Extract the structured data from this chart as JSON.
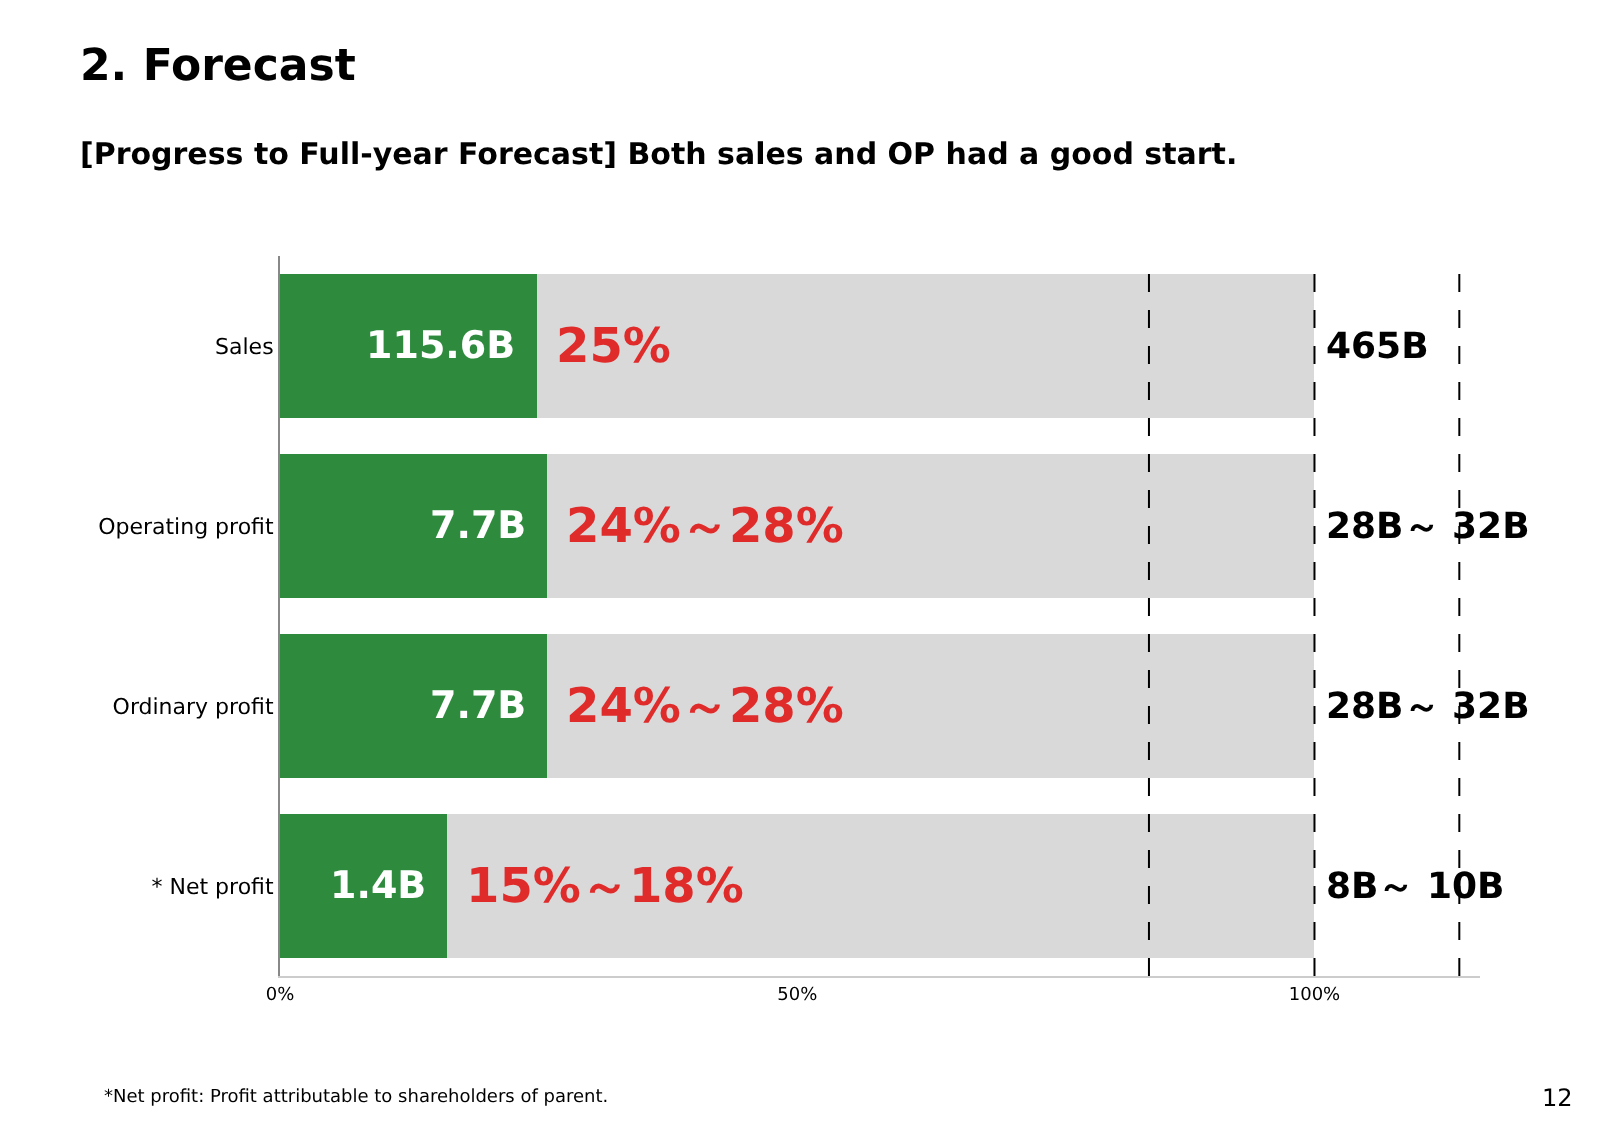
{
  "chart_data": {
    "type": "bar",
    "orientation": "horizontal",
    "stacked": true,
    "title": "2. Forecast",
    "subtitle": "[Progress to Full-year Forecast] Both sales and OP had a good start.",
    "categories": [
      "Sales",
      "Operating profit",
      "Ordinary profit",
      "* Net profit"
    ],
    "series": [
      {
        "color": "#2e8b3e",
        "values": [
          24.8,
          25.8,
          25.8,
          16.1
        ]
      },
      {
        "color": "#d9d9d9",
        "values": [
          75.2,
          74.2,
          74.2,
          83.9
        ]
      }
    ],
    "xlim": [
      0,
      116
    ],
    "xticks": [
      {
        "value": 0,
        "label": "0%"
      },
      {
        "value": 50,
        "label": "50%"
      },
      {
        "value": 100,
        "label": "100%"
      }
    ],
    "ref_lines": [
      {
        "axis": "x",
        "value": 100,
        "line_style": "dashed",
        "color": "#000000"
      },
      {
        "axis": "x",
        "value": 84,
        "line_style": "dashed",
        "color": "#000000"
      },
      {
        "axis": "x",
        "value": 114,
        "line_style": "dashed",
        "color": "#000000"
      }
    ],
    "annotations": [
      {
        "text": "115.6B",
        "x": 24.8,
        "y": "Sales"
      },
      {
        "text": "25%",
        "x": 24.8,
        "y": "Sales"
      },
      {
        "text": "465B",
        "x": 100,
        "y": "Sales"
      },
      {
        "text": "7.7B",
        "x": 25.8,
        "y": "Operating profit"
      },
      {
        "text": "24%～28%",
        "x": 25.8,
        "y": "Operating profit"
      },
      {
        "text": "28B～ 32B",
        "x": 100,
        "y": "Operating profit"
      },
      {
        "text": "7.7B",
        "x": 25.8,
        "y": "Ordinary profit"
      },
      {
        "text": "24%～28%",
        "x": 25.8,
        "y": "Ordinary profit"
      },
      {
        "text": "28B～ 32B",
        "x": 100,
        "y": "Ordinary profit"
      },
      {
        "text": "1.4B",
        "x": 16.1,
        "y": "* Net profit"
      },
      {
        "text": "15%～18%",
        "x": 16.1,
        "y": "* Net profit"
      },
      {
        "text": "8B～ 10B",
        "x": 100,
        "y": "* Net profit"
      },
      "*Net profit: Profit attributable to shareholders of parent.",
      "12"
    ],
    "legend": false
  }
}
